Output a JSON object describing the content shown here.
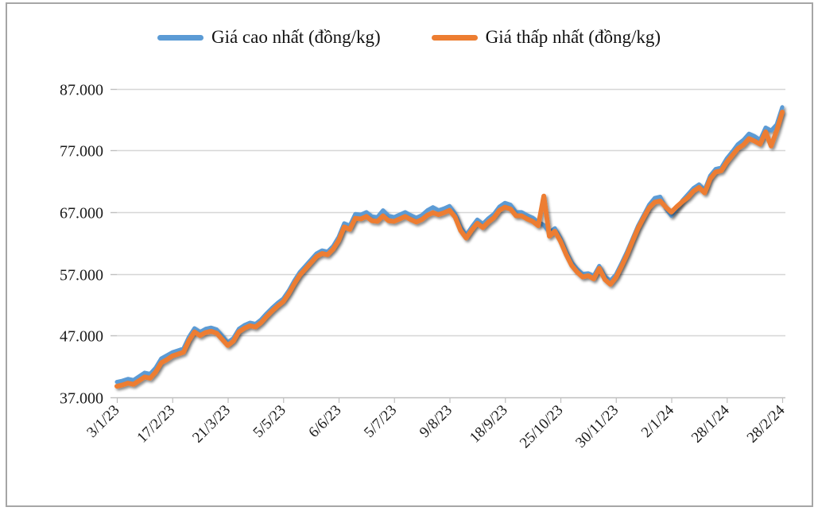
{
  "frame": {
    "border_color": "#A6A6A6",
    "background": "#FFFFFF"
  },
  "chart_data": {
    "type": "line",
    "title": "",
    "unit": "đồng/kg",
    "legend_position": "top",
    "grid": "horizontal",
    "colors": {
      "gridline": "#D6D6D6",
      "axis_line": "#BFBFBF",
      "tick_mark": "#BFBFBF",
      "text": "#1A1A1A"
    },
    "y_axis": {
      "min": 37000,
      "max": 87000,
      "step": 10000,
      "tick_labels": [
        "87.000",
        "77.000",
        "67.000",
        "57.000",
        "47.000",
        "37.000"
      ]
    },
    "x_axis": {
      "tick_labels": [
        "3/1/23",
        "17/2/23",
        "21/3/23",
        "5/5/23",
        "6/6/23",
        "5/7/23",
        "9/8/23",
        "18/9/23",
        "25/10/23",
        "30/11/23",
        "2/1/24",
        "28/1/24",
        "28/2/24"
      ]
    },
    "series": [
      {
        "name": "Giá cao nhất (đồng/kg)",
        "color": "#5B9BD5",
        "values": [
          39500,
          39700,
          40000,
          39800,
          40400,
          41000,
          40800,
          41800,
          43300,
          43800,
          44300,
          44600,
          44900,
          46800,
          48200,
          47600,
          48100,
          48300,
          48000,
          47000,
          45900,
          46600,
          48100,
          48700,
          49100,
          48900,
          49600,
          50600,
          51500,
          52300,
          53000,
          54300,
          55900,
          57300,
          58300,
          59300,
          60300,
          60800,
          60600,
          61500,
          63000,
          65200,
          64800,
          66700,
          66600,
          67000,
          66300,
          66200,
          67300,
          66400,
          66200,
          66600,
          67000,
          66500,
          66100,
          66500,
          67300,
          67800,
          67300,
          67600,
          68000,
          66800,
          64600,
          63300,
          64600,
          65800,
          65100,
          66000,
          66700,
          67900,
          68500,
          68200,
          67000,
          67000,
          66500,
          66100,
          65400,
          64900,
          63700,
          64400,
          62800,
          60700,
          58900,
          57800,
          57000,
          57100,
          56700,
          58300,
          56600,
          55900,
          56900,
          58700,
          60600,
          62700,
          64800,
          66500,
          68200,
          69300,
          69500,
          67600,
          66400,
          67600,
          68900,
          69900,
          70900,
          71500,
          70600,
          72900,
          74000,
          74200,
          75700,
          76800,
          78000,
          78700,
          79700,
          79300,
          78700,
          80700,
          80200,
          81200,
          84000
        ]
      },
      {
        "name": "Giá thấp nhất (đồng/kg)",
        "color": "#ED7D31",
        "values": [
          38800,
          39000,
          39300,
          39100,
          39700,
          40300,
          40100,
          41100,
          42600,
          43100,
          43700,
          44000,
          44300,
          46200,
          47600,
          47000,
          47500,
          47700,
          47400,
          46400,
          45400,
          46100,
          47600,
          48200,
          48600,
          48400,
          49100,
          50100,
          51000,
          51800,
          52500,
          53800,
          55400,
          56800,
          57800,
          58800,
          59800,
          60300,
          60100,
          61000,
          62400,
          64600,
          64200,
          66000,
          65900,
          66300,
          65600,
          65500,
          66400,
          65600,
          65500,
          65900,
          66300,
          65800,
          65400,
          65800,
          66500,
          66900,
          66600,
          66900,
          67300,
          66200,
          64000,
          62800,
          64100,
          65200,
          64500,
          65400,
          66100,
          67300,
          67800,
          67500,
          66400,
          66400,
          65900,
          65500,
          64800,
          69600,
          63100,
          63900,
          62300,
          60200,
          58400,
          57300,
          56500,
          56700,
          56200,
          57900,
          56100,
          55300,
          56400,
          58200,
          60100,
          62300,
          64400,
          66100,
          67700,
          68600,
          68800,
          67800,
          67000,
          67900,
          68700,
          69400,
          70400,
          71000,
          70100,
          72400,
          73500,
          73700,
          75100,
          76200,
          77300,
          77900,
          78900,
          78500,
          78000,
          80000,
          77700,
          80200,
          83200
        ]
      }
    ]
  }
}
